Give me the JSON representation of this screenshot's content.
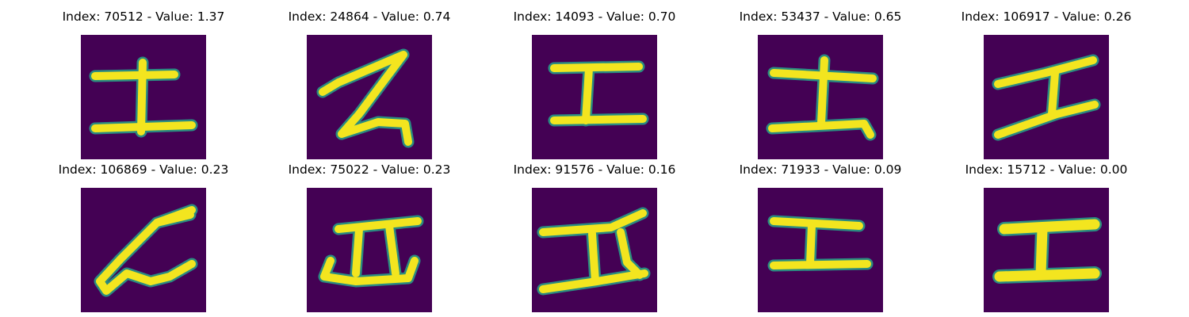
{
  "colors": {
    "background": "#440154",
    "stroke": "#f3e51f",
    "edge": "#26a48a"
  },
  "samples": [
    {
      "title": "Index: 70512 - Value: 1.37",
      "glyph": "handwritten-character-image"
    },
    {
      "title": "Index: 24864 - Value: 0.74",
      "glyph": "handwritten-character-image"
    },
    {
      "title": "Index: 14093 - Value: 0.70",
      "glyph": "handwritten-character-image"
    },
    {
      "title": "Index: 53437 - Value: 0.65",
      "glyph": "handwritten-character-image"
    },
    {
      "title": "Index: 106917 - Value: 0.26",
      "glyph": "handwritten-character-image"
    },
    {
      "title": "Index: 106869 - Value: 0.23",
      "glyph": "handwritten-character-image"
    },
    {
      "title": "Index: 75022 - Value: 0.23",
      "glyph": "handwritten-character-image"
    },
    {
      "title": "Index: 91576 - Value: 0.16",
      "glyph": "handwritten-character-image"
    },
    {
      "title": "Index: 71933 - Value: 0.09",
      "glyph": "handwritten-character-image"
    },
    {
      "title": "Index: 15712 - Value: 0.00",
      "glyph": "handwritten-character-image"
    }
  ]
}
